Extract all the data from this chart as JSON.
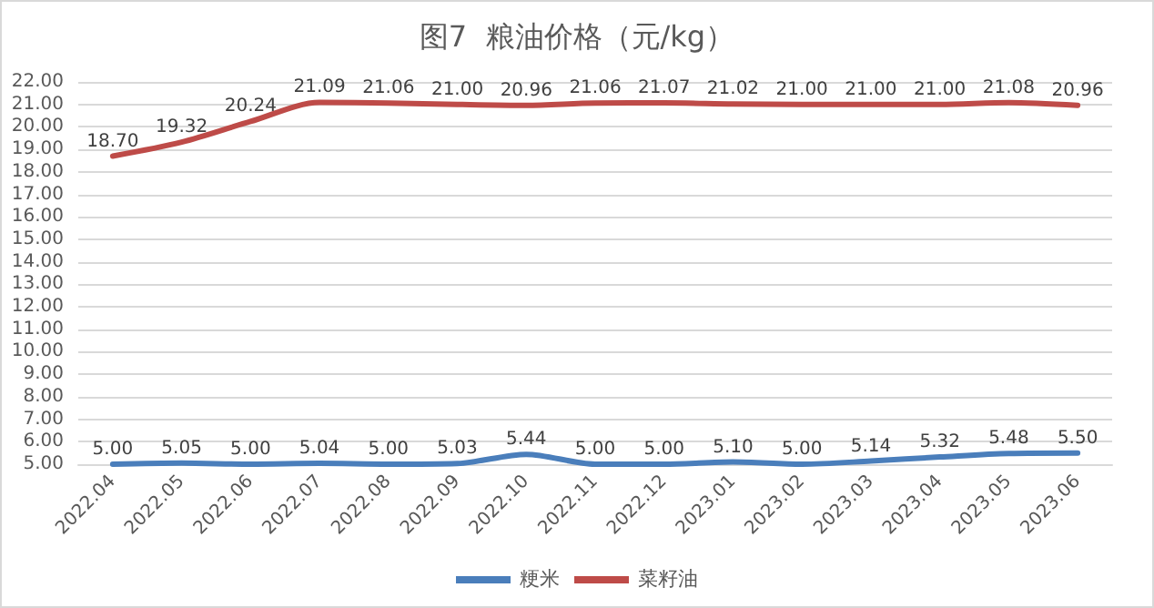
{
  "chart_data": {
    "type": "line",
    "title": "图7  粮油价格（元/kg）",
    "categories": [
      "2022.04",
      "2022.05",
      "2022.06",
      "2022.07",
      "2022.08",
      "2022.09",
      "2022.10",
      "2022.11",
      "2022.12",
      "2023.01",
      "2023.02",
      "2023.03",
      "2023.04",
      "2023.05",
      "2023.06"
    ],
    "series": [
      {
        "name": "粳米",
        "color": "#4a7ebb",
        "values": [
          5.0,
          5.05,
          5.0,
          5.04,
          5.0,
          5.03,
          5.44,
          5.0,
          5.0,
          5.1,
          5.0,
          5.14,
          5.32,
          5.48,
          5.5
        ],
        "value_labels": [
          "5.00",
          "5.05",
          "5.00",
          "5.04",
          "5.00",
          "5.03",
          "5.44",
          "5.00",
          "5.00",
          "5.10",
          "5.00",
          "5.14",
          "5.32",
          "5.48",
          "5.50"
        ]
      },
      {
        "name": "菜籽油",
        "color": "#be4b48",
        "values": [
          18.7,
          19.32,
          20.24,
          21.09,
          21.06,
          21.0,
          20.96,
          21.06,
          21.07,
          21.02,
          21.0,
          21.0,
          21.0,
          21.08,
          20.96
        ],
        "value_labels": [
          "18.70",
          "19.32",
          "20.24",
          "21.09",
          "21.06",
          "21.00",
          "20.96",
          "21.06",
          "21.07",
          "21.02",
          "21.00",
          "21.00",
          "21.00",
          "21.08",
          "20.96"
        ]
      }
    ],
    "ylim": [
      5,
      22
    ],
    "yticks": [
      {
        "value": 5,
        "label": "5.00"
      },
      {
        "value": 6,
        "label": "6.00"
      },
      {
        "value": 7,
        "label": "7.00"
      },
      {
        "value": 8,
        "label": "8.00"
      },
      {
        "value": 9,
        "label": "9.00"
      },
      {
        "value": 10,
        "label": "10.00"
      },
      {
        "value": 11,
        "label": "11.00"
      },
      {
        "value": 12,
        "label": "12.00"
      },
      {
        "value": 13,
        "label": "13.00"
      },
      {
        "value": 14,
        "label": "14.00"
      },
      {
        "value": 15,
        "label": "15.00"
      },
      {
        "value": 16,
        "label": "16.00"
      },
      {
        "value": 17,
        "label": "17.00"
      },
      {
        "value": 18,
        "label": "18.00"
      },
      {
        "value": 19,
        "label": "19.00"
      },
      {
        "value": 20,
        "label": "20.00"
      },
      {
        "value": 21,
        "label": "21.00"
      },
      {
        "value": 22,
        "label": "22.00"
      }
    ],
    "grid": "y",
    "legend": "bottom",
    "marker": "none",
    "line_style": "solid"
  }
}
